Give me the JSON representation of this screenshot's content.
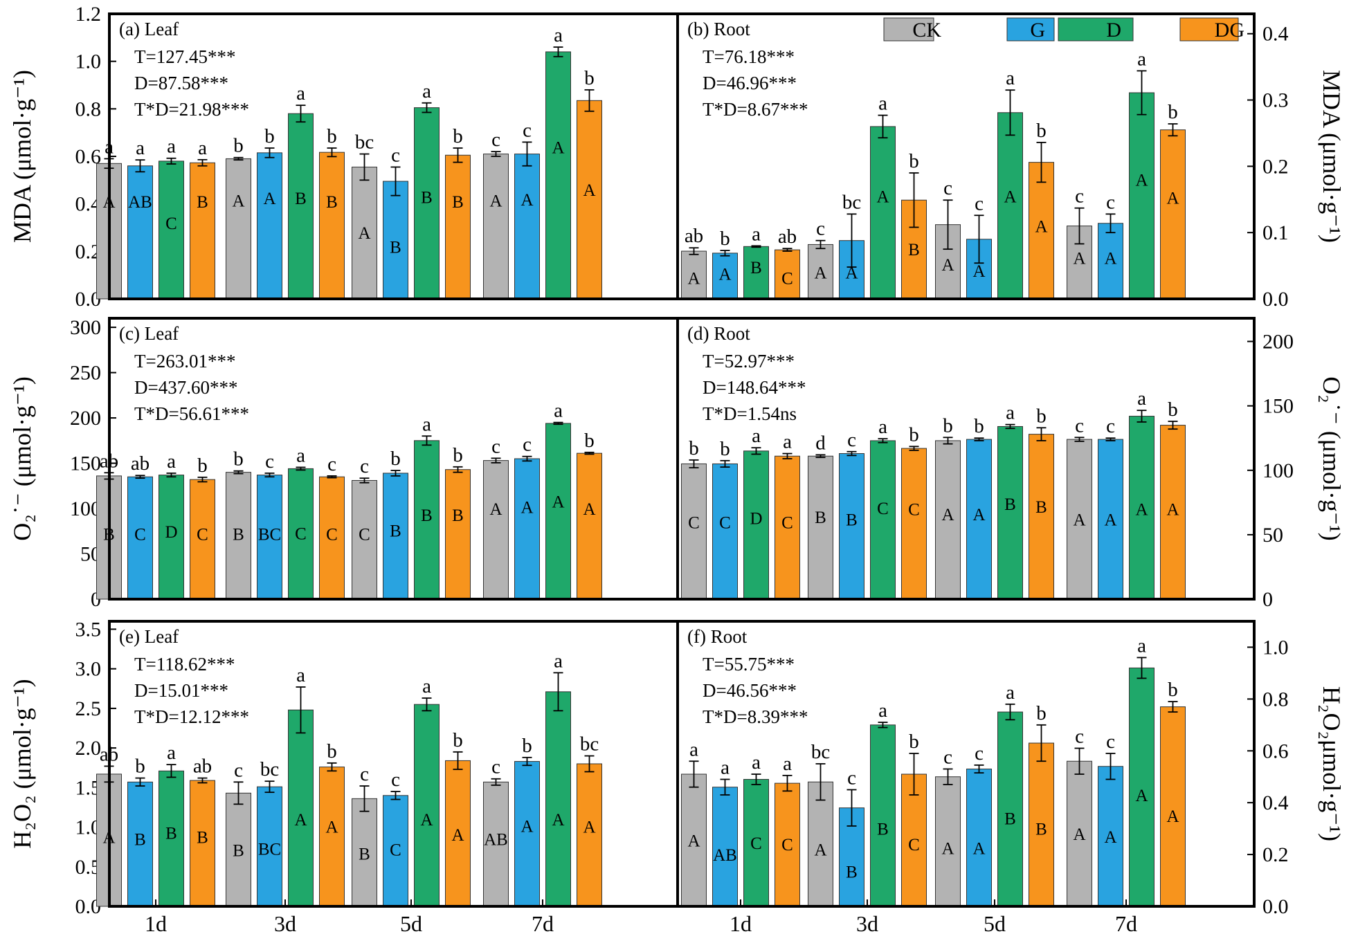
{
  "chart_data": {
    "type": "bar",
    "categories": [
      "1d",
      "3d",
      "5d",
      "7d"
    ],
    "legend": [
      {
        "name": "CK",
        "color": "#b3b3b3"
      },
      {
        "name": "G",
        "color": "#29a3e0"
      },
      {
        "name": "D",
        "color": "#1fa86a"
      },
      {
        "name": "DG",
        "color": "#f7941d"
      }
    ],
    "panels": [
      {
        "id": "a",
        "tissue": "Leaf",
        "label": "(a) Leaf",
        "stats": [
          "T=127.45***",
          "D=87.58***",
          "T*D=21.98***"
        ],
        "ylabel": "MDA (μmol·g⁻¹)",
        "ylim": [
          0,
          1.2
        ],
        "yticks": [
          0.0,
          0.2,
          0.4,
          0.6,
          0.8,
          1.0,
          1.2
        ],
        "tick_labels": [
          "0.0",
          "0.2",
          "0.4",
          "0.6",
          "0.8",
          "1.0",
          "1.2"
        ],
        "series": [
          {
            "name": "CK",
            "values": [
              0.57,
              0.59,
              0.555,
              0.61
            ],
            "err": [
              0.02,
              0.005,
              0.055,
              0.01
            ]
          },
          {
            "name": "G",
            "values": [
              0.56,
              0.615,
              0.495,
              0.61
            ],
            "err": [
              0.025,
              0.02,
              0.06,
              0.05
            ]
          },
          {
            "name": "D",
            "values": [
              0.58,
              0.78,
              0.805,
              1.04
            ],
            "err": [
              0.012,
              0.035,
              0.02,
              0.02
            ]
          },
          {
            "name": "DG",
            "values": [
              0.573,
              0.617,
              0.605,
              0.835
            ],
            "err": [
              0.013,
              0.018,
              0.03,
              0.045
            ]
          }
        ],
        "upper": [
          [
            "a",
            "a",
            "a",
            "a"
          ],
          [
            "b",
            "b",
            "a",
            "b"
          ],
          [
            "bc",
            "c",
            "a",
            "b"
          ],
          [
            "c",
            "c",
            "a",
            "b"
          ]
        ],
        "lower": [
          [
            "A",
            "AB",
            "C",
            "B"
          ],
          [
            "A",
            "A",
            "B",
            "B"
          ],
          [
            "A",
            "B",
            "B",
            "B"
          ],
          [
            "A",
            "A",
            "A",
            "A"
          ]
        ],
        "lower_ypos": [
          0.41,
          0.41,
          0.32,
          0.41,
          0.415,
          0.425,
          0.425,
          0.41,
          0.28,
          0.22,
          0.43,
          0.41,
          0.415,
          0.42,
          0.64,
          0.46
        ]
      },
      {
        "id": "b",
        "tissue": "Root",
        "label": "(b) Root",
        "stats": [
          "T=76.18***",
          "D=46.96***",
          "T*D=8.67***"
        ],
        "ylabel": "MDA (μmol·g⁻¹)",
        "ylim": [
          0,
          0.43
        ],
        "yticks": [
          0.0,
          0.1,
          0.2,
          0.3,
          0.4
        ],
        "tick_labels": [
          "0.0",
          "0.1",
          "0.2",
          "0.3",
          "0.4"
        ],
        "series": [
          {
            "name": "CK",
            "values": [
              0.072,
              0.082,
              0.112,
              0.11
            ],
            "err": [
              0.005,
              0.006,
              0.037,
              0.027
            ]
          },
          {
            "name": "G",
            "values": [
              0.069,
              0.088,
              0.09,
              0.114
            ],
            "err": [
              0.004,
              0.04,
              0.036,
              0.014
            ]
          },
          {
            "name": "D",
            "values": [
              0.079,
              0.26,
              0.281,
              0.311
            ],
            "err": [
              0.001,
              0.017,
              0.034,
              0.033
            ]
          },
          {
            "name": "DG",
            "values": [
              0.074,
              0.149,
              0.206,
              0.255
            ],
            "err": [
              0.002,
              0.041,
              0.03,
              0.009
            ]
          }
        ],
        "upper": [
          [
            "ab",
            "b",
            "a",
            "ab"
          ],
          [
            "c",
            "bc",
            "a",
            "b"
          ],
          [
            "c",
            "c",
            "a",
            "b"
          ],
          [
            "c",
            "c",
            "a",
            "b"
          ]
        ],
        "lower": [
          [
            "A",
            "A",
            "B",
            "C"
          ],
          [
            "A",
            "A",
            "A",
            "B"
          ],
          [
            "A",
            "A",
            "A",
            "A"
          ],
          [
            "A",
            "A",
            "A",
            "A"
          ]
        ],
        "lower_ypos": [
          0.032,
          0.038,
          0.048,
          0.032,
          0.04,
          0.04,
          0.155,
          0.075,
          0.052,
          0.043,
          0.155,
          0.11,
          0.062,
          0.062,
          0.18,
          0.153
        ]
      },
      {
        "id": "c",
        "tissue": "Leaf",
        "label": "(c) Leaf",
        "stats": [
          "T=263.01***",
          "D=437.60***",
          "T*D=56.61***"
        ],
        "ylabel": "O₂˙⁻ (μmol·g⁻¹)",
        "ylim": [
          0,
          310
        ],
        "yticks": [
          0,
          50,
          100,
          150,
          200,
          250,
          300
        ],
        "tick_labels": [
          "0",
          "50",
          "100",
          "150",
          "200",
          "250",
          "300"
        ],
        "series": [
          {
            "name": "CK",
            "values": [
              136,
              140,
              131,
              153
            ],
            "err": [
              3.5,
              1.5,
              2.5,
              2.5
            ]
          },
          {
            "name": "G",
            "values": [
              135,
              137,
              139,
              155
            ],
            "err": [
              1.5,
              2,
              3,
              2.5
            ]
          },
          {
            "name": "D",
            "values": [
              137,
              144,
              175,
              194
            ],
            "err": [
              2,
              1.5,
              5,
              1
            ]
          },
          {
            "name": "DG",
            "values": [
              132,
              135,
              143,
              161
            ],
            "err": [
              2.5,
              1,
              3,
              1
            ]
          }
        ],
        "upper": [
          [
            "ab",
            "ab",
            "a",
            "b"
          ],
          [
            "b",
            "c",
            "a",
            "c"
          ],
          [
            "c",
            "b",
            "a",
            "b"
          ],
          [
            "c",
            "c",
            "a",
            "b"
          ]
        ],
        "lower": [
          [
            "B",
            "C",
            "D",
            "C"
          ],
          [
            "B",
            "BC",
            "C",
            "C"
          ],
          [
            "C",
            "B",
            "B",
            "B"
          ],
          [
            "A",
            "A",
            "A",
            "A"
          ]
        ],
        "lower_ypos": [
          72,
          72,
          75,
          72,
          72,
          72,
          73,
          72,
          72,
          76,
          93,
          93,
          100,
          102,
          108,
          100
        ]
      },
      {
        "id": "d",
        "tissue": "Root",
        "label": "(d) Root",
        "stats": [
          "T=52.97***",
          "D=148.64***",
          "T*D=1.54ns"
        ],
        "ylabel": "O₂˙⁻ (μmol·g⁻¹)",
        "ylim": [
          0,
          218
        ],
        "yticks": [
          0,
          50,
          100,
          150,
          200
        ],
        "tick_labels": [
          "0",
          "50",
          "100",
          "150",
          "200"
        ],
        "series": [
          {
            "name": "CK",
            "values": [
              105,
              111,
              123,
              124
            ],
            "err": [
              3,
              1,
              2.5,
              1.5
            ]
          },
          {
            "name": "G",
            "values": [
              105,
              113,
              124,
              124
            ],
            "err": [
              2.5,
              1.5,
              1,
              1
            ]
          },
          {
            "name": "D",
            "values": [
              115,
              123,
              134,
              142
            ],
            "err": [
              2.5,
              1.5,
              1.5,
              4.5
            ]
          },
          {
            "name": "DG",
            "values": [
              111,
              117,
              128,
              135
            ],
            "err": [
              2,
              1.5,
              5,
              3
            ]
          }
        ],
        "upper": [
          [
            "b",
            "b",
            "a",
            "a"
          ],
          [
            "d",
            "c",
            "a",
            "b"
          ],
          [
            "b",
            "b",
            "a",
            "b"
          ],
          [
            "c",
            "c",
            "a",
            "b"
          ]
        ],
        "lower": [
          [
            "C",
            "C",
            "D",
            "C"
          ],
          [
            "B",
            "B",
            "C",
            "C"
          ],
          [
            "A",
            "A",
            "B",
            "B"
          ],
          [
            "A",
            "A",
            "A",
            "A"
          ]
        ],
        "lower_ypos": [
          60,
          60,
          63,
          60,
          64,
          62,
          71,
          70,
          66,
          66,
          74,
          72,
          62,
          62,
          70,
          70
        ]
      },
      {
        "id": "e",
        "tissue": "Leaf",
        "label": "(e) Leaf",
        "stats": [
          "T=118.62***",
          "D=15.01***",
          "T*D=12.12***"
        ],
        "ylabel": "H₂O₂ (μmol·g⁻¹)",
        "ylim": [
          0,
          3.6
        ],
        "yticks": [
          0.0,
          0.5,
          1.0,
          1.5,
          2.0,
          2.5,
          3.0,
          3.5
        ],
        "tick_labels": [
          "0.0",
          "0.5",
          "1.0",
          "1.5",
          "2.0",
          "2.5",
          "3.0",
          "3.5"
        ],
        "series": [
          {
            "name": "CK",
            "values": [
              1.67,
              1.43,
              1.36,
              1.57
            ],
            "err": [
              0.1,
              0.14,
              0.16,
              0.04
            ]
          },
          {
            "name": "G",
            "values": [
              1.57,
              1.51,
              1.4,
              1.83
            ],
            "err": [
              0.05,
              0.07,
              0.05,
              0.05
            ]
          },
          {
            "name": "D",
            "values": [
              1.71,
              2.48,
              2.55,
              2.71
            ],
            "err": [
              0.08,
              0.29,
              0.08,
              0.24
            ]
          },
          {
            "name": "DG",
            "values": [
              1.59,
              1.76,
              1.84,
              1.8
            ],
            "err": [
              0.03,
              0.05,
              0.11,
              0.1
            ]
          }
        ],
        "upper": [
          [
            "ab",
            "b",
            "a",
            "ab"
          ],
          [
            "c",
            "bc",
            "a",
            "b"
          ],
          [
            "c",
            "c",
            "a",
            "b"
          ],
          [
            "c",
            "b",
            "a",
            "bc"
          ]
        ],
        "lower": [
          [
            "A",
            "B",
            "B",
            "B"
          ],
          [
            "B",
            "BC",
            "A",
            "A"
          ],
          [
            "B",
            "C",
            "A",
            "A"
          ],
          [
            "AB",
            "A",
            "A",
            "A"
          ]
        ],
        "lower_ypos": [
          0.88,
          0.85,
          0.93,
          0.88,
          0.71,
          0.73,
          1.1,
          1.01,
          0.67,
          0.72,
          1.1,
          0.91,
          0.85,
          1.02,
          1.1,
          1.01
        ]
      },
      {
        "id": "f",
        "tissue": "Root",
        "label": "(f) Root",
        "stats": [
          "T=55.75***",
          "D=46.56***",
          "T*D=8.39***"
        ],
        "ylabel": "H₂O₂μmol·g⁻¹)",
        "ylim": [
          0,
          1.1
        ],
        "yticks": [
          0.0,
          0.2,
          0.4,
          0.6,
          0.8,
          1.0
        ],
        "tick_labels": [
          "0.0",
          "0.2",
          "0.4",
          "0.6",
          "0.8",
          "1.0"
        ],
        "series": [
          {
            "name": "CK",
            "values": [
              0.51,
              0.48,
              0.5,
              0.56
            ],
            "err": [
              0.05,
              0.07,
              0.03,
              0.05
            ]
          },
          {
            "name": "G",
            "values": [
              0.46,
              0.38,
              0.53,
              0.54
            ],
            "err": [
              0.03,
              0.07,
              0.015,
              0.05
            ]
          },
          {
            "name": "D",
            "values": [
              0.49,
              0.7,
              0.75,
              0.92
            ],
            "err": [
              0.02,
              0.01,
              0.03,
              0.04
            ]
          },
          {
            "name": "DG",
            "values": [
              0.475,
              0.51,
              0.63,
              0.77
            ],
            "err": [
              0.03,
              0.08,
              0.07,
              0.02
            ]
          }
        ],
        "upper": [
          [
            "a",
            "a",
            "a",
            "a"
          ],
          [
            "bc",
            "c",
            "a",
            "b"
          ],
          [
            "c",
            "c",
            "a",
            "b"
          ],
          [
            "c",
            "c",
            "a",
            "b"
          ]
        ],
        "lower": [
          [
            "A",
            "AB",
            "C",
            "C"
          ],
          [
            "A",
            "B",
            "B",
            "C"
          ],
          [
            "A",
            "A",
            "B",
            "B"
          ],
          [
            "A",
            "A",
            "A",
            "A"
          ]
        ],
        "lower_ypos": [
          0.255,
          0.2,
          0.245,
          0.24,
          0.22,
          0.135,
          0.3,
          0.24,
          0.225,
          0.225,
          0.34,
          0.3,
          0.28,
          0.27,
          0.43,
          0.35
        ]
      }
    ]
  }
}
